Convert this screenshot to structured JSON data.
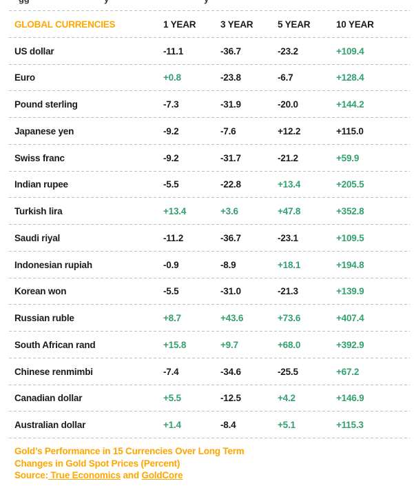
{
  "colors": {
    "orange": "#FFA500",
    "green": "#32A06F",
    "dark": "#1A1A1A",
    "dash": "#BDBDBD"
  },
  "top_cropped_fragments": [
    {
      "text": "gg",
      "x": 27
    },
    {
      "text": "y",
      "x": 151
    },
    {
      "text": "y",
      "x": 296
    }
  ],
  "table": {
    "header_label": "GLOBAL CURRENCIES",
    "columns": [
      "1 YEAR",
      "3 YEAR",
      "5 YEAR",
      "10 YEAR"
    ],
    "rows": [
      {
        "currency": "US dollar",
        "values": [
          "-11.1",
          "-36.7",
          "-23.2",
          "+109.4"
        ],
        "colors": [
          "dark",
          "dark",
          "dark",
          "green"
        ]
      },
      {
        "currency": "Euro",
        "values": [
          "+0.8",
          "-23.8",
          "-6.7",
          "+128.4"
        ],
        "colors": [
          "green",
          "dark",
          "dark",
          "green"
        ]
      },
      {
        "currency": "Pound sterling",
        "values": [
          "-7.3",
          "-31.9",
          "-20.0",
          "+144.2"
        ],
        "colors": [
          "dark",
          "dark",
          "dark",
          "green"
        ]
      },
      {
        "currency": "Japanese yen",
        "values": [
          "-9.2",
          "-7.6",
          "+12.2",
          "+115.0"
        ],
        "colors": [
          "dark",
          "dark",
          "dark",
          "dark"
        ]
      },
      {
        "currency": "Swiss franc",
        "values": [
          "-9.2",
          "-31.7",
          "-21.2",
          "+59.9"
        ],
        "colors": [
          "dark",
          "dark",
          "dark",
          "green"
        ]
      },
      {
        "currency": "Indian rupee",
        "values": [
          "-5.5",
          "-22.8",
          "+13.4",
          "+205.5"
        ],
        "colors": [
          "dark",
          "dark",
          "green",
          "green"
        ]
      },
      {
        "currency": "Turkish lira",
        "values": [
          "+13.4",
          "+3.6",
          "+47.8",
          "+352.8"
        ],
        "colors": [
          "green",
          "green",
          "green",
          "green"
        ]
      },
      {
        "currency": "Saudi riyal",
        "values": [
          "-11.2",
          "-36.7",
          "-23.1",
          "+109.5"
        ],
        "colors": [
          "dark",
          "dark",
          "dark",
          "green"
        ]
      },
      {
        "currency": "Indonesian rupiah",
        "values": [
          "-0.9",
          "-8.9",
          "+18.1",
          "+194.8"
        ],
        "colors": [
          "dark",
          "dark",
          "green",
          "green"
        ]
      },
      {
        "currency": "Korean won",
        "values": [
          "-5.5",
          "-31.0",
          "-21.3",
          "+139.9"
        ],
        "colors": [
          "dark",
          "dark",
          "dark",
          "green"
        ]
      },
      {
        "currency": "Russian ruble",
        "values": [
          "+8.7",
          "+43.6",
          "+73.6",
          "+407.4"
        ],
        "colors": [
          "green",
          "green",
          "green",
          "green"
        ]
      },
      {
        "currency": "South African rand",
        "values": [
          "+15.8",
          "+9.7",
          "+68.0",
          "+392.9"
        ],
        "colors": [
          "green",
          "green",
          "green",
          "green"
        ]
      },
      {
        "currency": "Chinese renmimbi",
        "values": [
          "-7.4",
          "-34.6",
          "-25.5",
          "+67.2"
        ],
        "colors": [
          "dark",
          "dark",
          "dark",
          "green"
        ]
      },
      {
        "currency": "Canadian dollar",
        "values": [
          "+5.5",
          "-12.5",
          "+4.2",
          "+146.9"
        ],
        "colors": [
          "green",
          "dark",
          "green",
          "green"
        ]
      },
      {
        "currency": "Australian dollar",
        "values": [
          "+1.4",
          "-8.4",
          "+5.1",
          "+115.3"
        ],
        "colors": [
          "green",
          "dark",
          "green",
          "green"
        ]
      }
    ]
  },
  "footer": {
    "title": "Gold’s Performance in 15 Currencies Over Long Term",
    "subtitle": "Changes in Gold Spot Prices (Percent)",
    "source_segments": [
      {
        "text": "Source:",
        "link": false
      },
      {
        "text": " True Economics",
        "link": true
      },
      {
        "text": " and ",
        "link": false
      },
      {
        "text": "GoldCore",
        "link": true
      }
    ]
  },
  "chart_data": {
    "type": "table",
    "title": "Gold’s Performance in 15 Currencies Over Long Term",
    "subtitle": "Changes in Gold Spot Prices (Percent)",
    "columns": [
      "1 YEAR",
      "3 YEAR",
      "5 YEAR",
      "10 YEAR"
    ],
    "categories": [
      "US dollar",
      "Euro",
      "Pound sterling",
      "Japanese yen",
      "Swiss franc",
      "Indian rupee",
      "Turkish lira",
      "Saudi riyal",
      "Indonesian rupiah",
      "Korean won",
      "Russian ruble",
      "South African rand",
      "Chinese renmimbi",
      "Canadian dollar",
      "Australian dollar"
    ],
    "series": [
      {
        "name": "1 YEAR",
        "values": [
          -11.1,
          0.8,
          -7.3,
          -9.2,
          -9.2,
          -5.5,
          13.4,
          -11.2,
          -0.9,
          -5.5,
          8.7,
          15.8,
          -7.4,
          5.5,
          1.4
        ]
      },
      {
        "name": "3 YEAR",
        "values": [
          -36.7,
          -23.8,
          -31.9,
          -7.6,
          -31.7,
          -22.8,
          3.6,
          -36.7,
          -8.9,
          -31.0,
          43.6,
          9.7,
          -34.6,
          -12.5,
          -8.4
        ]
      },
      {
        "name": "5 YEAR",
        "values": [
          -23.2,
          -6.7,
          -20.0,
          12.2,
          -21.2,
          13.4,
          47.8,
          -23.1,
          18.1,
          -21.3,
          73.6,
          68.0,
          -25.5,
          4.2,
          5.1
        ]
      },
      {
        "name": "10 YEAR",
        "values": [
          109.4,
          128.4,
          144.2,
          115.0,
          59.9,
          205.5,
          352.8,
          109.5,
          194.8,
          139.9,
          407.4,
          392.9,
          67.2,
          146.9,
          115.3
        ]
      }
    ],
    "source": "True Economics and GoldCore",
    "value_color_rule": "positives shown green except Japanese yen row; negatives black"
  }
}
